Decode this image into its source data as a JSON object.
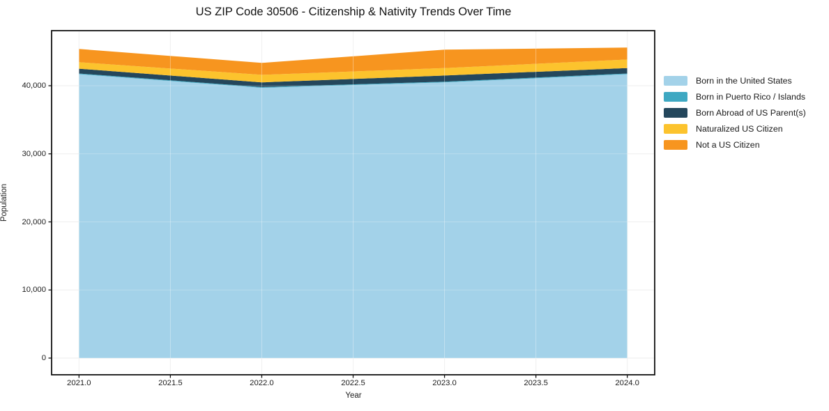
{
  "title": "US ZIP Code 30506 - Citizenship & Nativity Trends Over Time",
  "chart_data": {
    "type": "area",
    "stacked": true,
    "title": "US ZIP Code 30506 - Citizenship & Nativity Trends Over Time",
    "xlabel": "Year",
    "ylabel": "Population",
    "x": [
      2021,
      2022,
      2023,
      2024
    ],
    "series": [
      {
        "name": "Born in the United States",
        "color": "#a3d2e9",
        "values": [
          41700,
          39700,
          40500,
          41700
        ]
      },
      {
        "name": "Born in Puerto Rico / Islands",
        "color": "#3ea8c2",
        "values": [
          100,
          100,
          100,
          100
        ]
      },
      {
        "name": "Born Abroad of US Parent(s)",
        "color": "#24475c",
        "values": [
          700,
          700,
          900,
          800
        ]
      },
      {
        "name": "Naturalized US Citizen",
        "color": "#fcc32d",
        "values": [
          950,
          1100,
          1100,
          1250
        ]
      },
      {
        "name": "Not a US Citizen",
        "color": "#f7951f",
        "values": [
          1950,
          1750,
          2700,
          1750
        ]
      }
    ],
    "x_tick_values": [
      2021.0,
      2021.5,
      2022.0,
      2022.5,
      2023.0,
      2023.5,
      2024.0
    ],
    "x_tick_labels": [
      "2021.0",
      "2021.5",
      "2022.0",
      "2022.5",
      "2023.0",
      "2023.5",
      "2024.0"
    ],
    "y_tick_values": [
      0,
      10000,
      20000,
      30000,
      40000
    ],
    "y_tick_labels": [
      "0",
      "10,000",
      "20,000",
      "30,000",
      "40,000"
    ],
    "xlim": [
      2020.85,
      2024.15
    ],
    "ylim": [
      -2455,
      48090
    ],
    "grid": true,
    "legend_position": "right",
    "colors": {
      "grid": "#e9e9e9",
      "frame": "#111111",
      "background": "#ffffff"
    }
  }
}
